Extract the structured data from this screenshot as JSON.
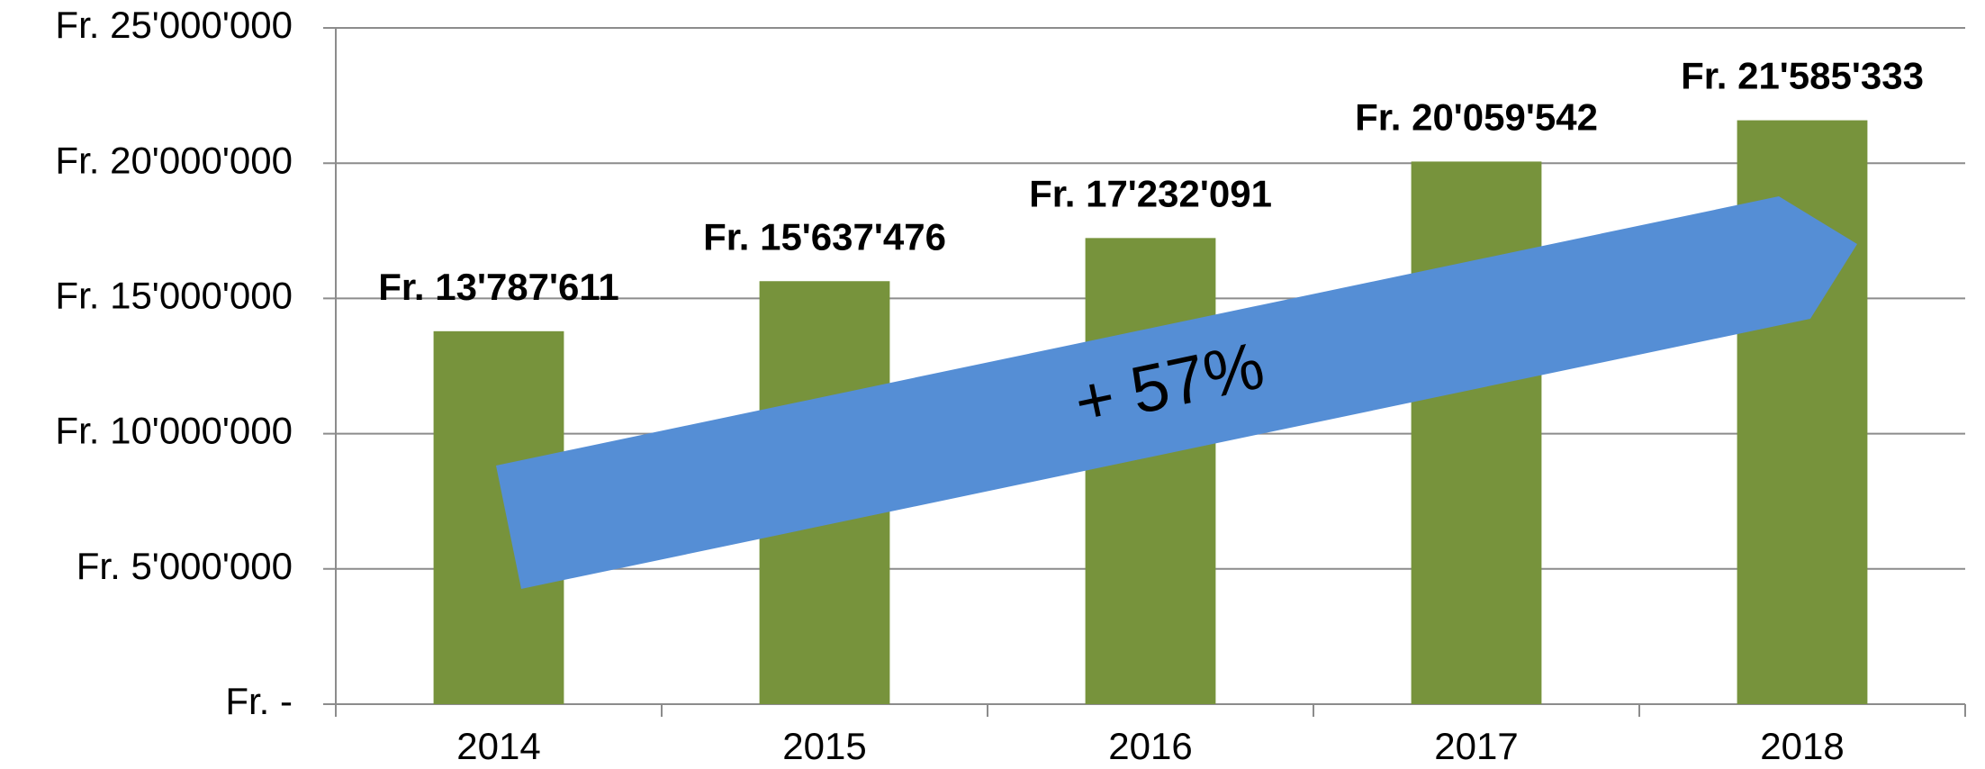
{
  "chart_data": {
    "type": "bar",
    "categories": [
      "2014",
      "2015",
      "2016",
      "2017",
      "2018"
    ],
    "values": [
      13787611,
      15637476,
      17232091,
      20059542,
      21585333
    ],
    "value_labels": [
      "Fr. 13'787'611",
      "Fr. 15'637'476",
      "Fr. 17'232'091",
      "Fr. 20'059'542",
      "Fr. 21'585'333"
    ],
    "color": "#77933c",
    "ylim": [
      0,
      25000000
    ],
    "yticks": [
      {
        "value": 0,
        "label": "Fr. -"
      },
      {
        "value": 5000000,
        "label": "Fr. 5'000'000"
      },
      {
        "value": 10000000,
        "label": "Fr. 10'000'000"
      },
      {
        "value": 15000000,
        "label": "Fr. 15'000'000"
      },
      {
        "value": 20000000,
        "label": "Fr. 20'000'000"
      },
      {
        "value": 25000000,
        "label": "Fr. 25'000'000"
      }
    ],
    "grid": true,
    "annotation": "+ 57%",
    "annotation_color": "#558ed5"
  }
}
